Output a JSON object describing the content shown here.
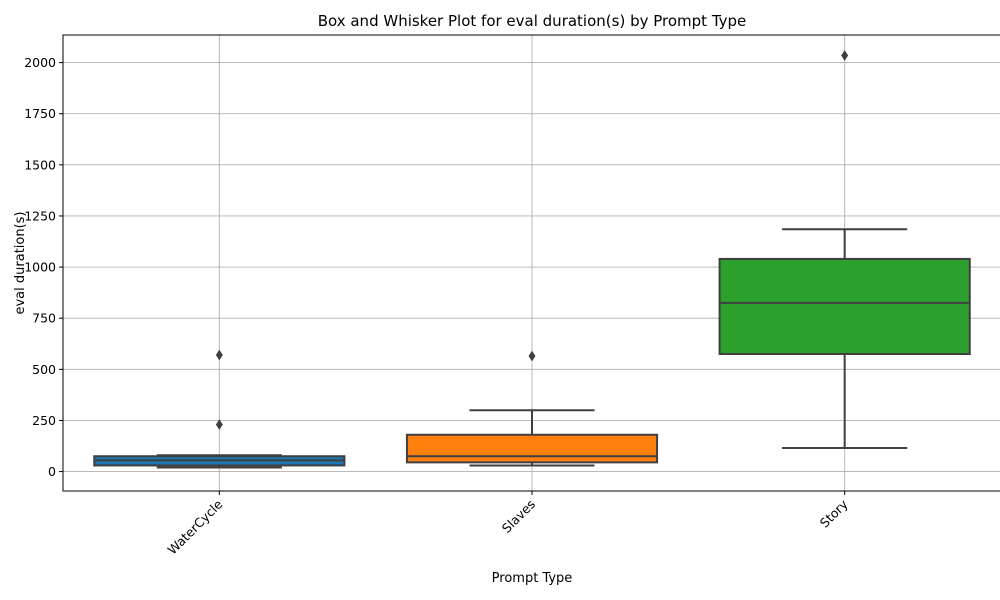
{
  "chart_data": {
    "type": "box",
    "title": "Box and Whisker Plot for eval duration(s) by Prompt Type",
    "xlabel": "Prompt Type",
    "ylabel": "eval duration(s)",
    "ylim": [
      -95,
      2135
    ],
    "yticks": [
      0,
      250,
      500,
      750,
      1000,
      1250,
      1500,
      1750,
      2000
    ],
    "grid": true,
    "categories": [
      "WaterCycle",
      "Slaves",
      "Story"
    ],
    "boxes": [
      {
        "category": "WaterCycle",
        "whisker_low": 20,
        "q1": 30,
        "median": 55,
        "q3": 75,
        "whisker_high": 80,
        "outliers": [
          230,
          570
        ],
        "color": "#1f77b4"
      },
      {
        "category": "Slaves",
        "whisker_low": 30,
        "q1": 45,
        "median": 75,
        "q3": 180,
        "whisker_high": 300,
        "outliers": [
          565
        ],
        "color": "#ff7f0e"
      },
      {
        "category": "Story",
        "whisker_low": 115,
        "q1": 575,
        "median": 825,
        "q3": 1040,
        "whisker_high": 1185,
        "outliers": [
          2035
        ],
        "color": "#2ca02c"
      }
    ]
  }
}
